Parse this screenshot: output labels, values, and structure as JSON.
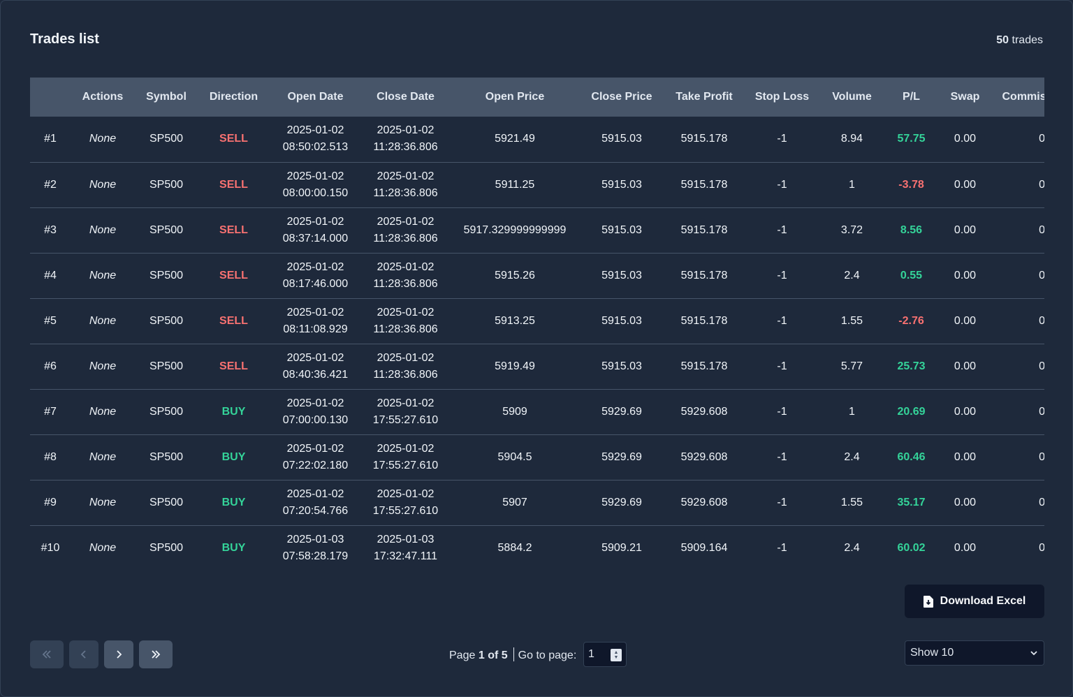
{
  "header": {
    "title": "Trades list",
    "count": "50",
    "count_suffix": "trades"
  },
  "table": {
    "columns": [
      "",
      "Actions",
      "Symbol",
      "Direction",
      "Open Date",
      "Close Date",
      "Open Price",
      "Close Price",
      "Take Profit",
      "Stop Loss",
      "Volume",
      "P/L",
      "Swap",
      "Commission"
    ],
    "rows": [
      {
        "id": "#1",
        "actions": "None",
        "symbol": "SP500",
        "direction": "SELL",
        "open_date": "2025-01-02",
        "open_time": "08:50:02.513",
        "close_date": "2025-01-02",
        "close_time": "11:28:36.806",
        "open_price": "5921.49",
        "close_price": "5915.03",
        "take_profit": "5915.178",
        "stop_loss": "-1",
        "volume": "8.94",
        "pl": "57.75",
        "swap": "0.00",
        "commission": "0"
      },
      {
        "id": "#2",
        "actions": "None",
        "symbol": "SP500",
        "direction": "SELL",
        "open_date": "2025-01-02",
        "open_time": "08:00:00.150",
        "close_date": "2025-01-02",
        "close_time": "11:28:36.806",
        "open_price": "5911.25",
        "close_price": "5915.03",
        "take_profit": "5915.178",
        "stop_loss": "-1",
        "volume": "1",
        "pl": "-3.78",
        "swap": "0.00",
        "commission": "0"
      },
      {
        "id": "#3",
        "actions": "None",
        "symbol": "SP500",
        "direction": "SELL",
        "open_date": "2025-01-02",
        "open_time": "08:37:14.000",
        "close_date": "2025-01-02",
        "close_time": "11:28:36.806",
        "open_price": "5917.329999999999",
        "close_price": "5915.03",
        "take_profit": "5915.178",
        "stop_loss": "-1",
        "volume": "3.72",
        "pl": "8.56",
        "swap": "0.00",
        "commission": "0"
      },
      {
        "id": "#4",
        "actions": "None",
        "symbol": "SP500",
        "direction": "SELL",
        "open_date": "2025-01-02",
        "open_time": "08:17:46.000",
        "close_date": "2025-01-02",
        "close_time": "11:28:36.806",
        "open_price": "5915.26",
        "close_price": "5915.03",
        "take_profit": "5915.178",
        "stop_loss": "-1",
        "volume": "2.4",
        "pl": "0.55",
        "swap": "0.00",
        "commission": "0"
      },
      {
        "id": "#5",
        "actions": "None",
        "symbol": "SP500",
        "direction": "SELL",
        "open_date": "2025-01-02",
        "open_time": "08:11:08.929",
        "close_date": "2025-01-02",
        "close_time": "11:28:36.806",
        "open_price": "5913.25",
        "close_price": "5915.03",
        "take_profit": "5915.178",
        "stop_loss": "-1",
        "volume": "1.55",
        "pl": "-2.76",
        "swap": "0.00",
        "commission": "0"
      },
      {
        "id": "#6",
        "actions": "None",
        "symbol": "SP500",
        "direction": "SELL",
        "open_date": "2025-01-02",
        "open_time": "08:40:36.421",
        "close_date": "2025-01-02",
        "close_time": "11:28:36.806",
        "open_price": "5919.49",
        "close_price": "5915.03",
        "take_profit": "5915.178",
        "stop_loss": "-1",
        "volume": "5.77",
        "pl": "25.73",
        "swap": "0.00",
        "commission": "0"
      },
      {
        "id": "#7",
        "actions": "None",
        "symbol": "SP500",
        "direction": "BUY",
        "open_date": "2025-01-02",
        "open_time": "07:00:00.130",
        "close_date": "2025-01-02",
        "close_time": "17:55:27.610",
        "open_price": "5909",
        "close_price": "5929.69",
        "take_profit": "5929.608",
        "stop_loss": "-1",
        "volume": "1",
        "pl": "20.69",
        "swap": "0.00",
        "commission": "0"
      },
      {
        "id": "#8",
        "actions": "None",
        "symbol": "SP500",
        "direction": "BUY",
        "open_date": "2025-01-02",
        "open_time": "07:22:02.180",
        "close_date": "2025-01-02",
        "close_time": "17:55:27.610",
        "open_price": "5904.5",
        "close_price": "5929.69",
        "take_profit": "5929.608",
        "stop_loss": "-1",
        "volume": "2.4",
        "pl": "60.46",
        "swap": "0.00",
        "commission": "0"
      },
      {
        "id": "#9",
        "actions": "None",
        "symbol": "SP500",
        "direction": "BUY",
        "open_date": "2025-01-02",
        "open_time": "07:20:54.766",
        "close_date": "2025-01-02",
        "close_time": "17:55:27.610",
        "open_price": "5907",
        "close_price": "5929.69",
        "take_profit": "5929.608",
        "stop_loss": "-1",
        "volume": "1.55",
        "pl": "35.17",
        "swap": "0.00",
        "commission": "0"
      },
      {
        "id": "#10",
        "actions": "None",
        "symbol": "SP500",
        "direction": "BUY",
        "open_date": "2025-01-03",
        "open_time": "07:58:28.179",
        "close_date": "2025-01-03",
        "close_time": "17:32:47.111",
        "open_price": "5884.2",
        "close_price": "5909.21",
        "take_profit": "5909.164",
        "stop_loss": "-1",
        "volume": "2.4",
        "pl": "60.02",
        "swap": "0.00",
        "commission": "0"
      }
    ]
  },
  "download": {
    "label": "Download Excel",
    "icon": "file-download-icon"
  },
  "pagination": {
    "page_label": "Page",
    "page_current": "1",
    "of_label": "of",
    "page_total": "5",
    "goto_label": "Go to page:",
    "goto_value": "1",
    "show_value": "Show 10"
  },
  "colors": {
    "sell": "#f87171",
    "buy": "#34d399",
    "background": "#1e293b",
    "header_bg": "#475569"
  }
}
